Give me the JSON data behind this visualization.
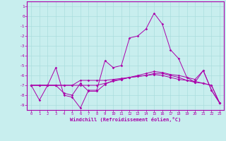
{
  "xlabel": "Windchill (Refroidissement éolien,°C)",
  "ylabel": "",
  "xlim": [
    -0.5,
    23.5
  ],
  "ylim": [
    -9.5,
    1.5
  ],
  "yticks": [
    1,
    0,
    -1,
    -2,
    -3,
    -4,
    -5,
    -6,
    -7,
    -8,
    -9
  ],
  "xticks": [
    0,
    1,
    2,
    3,
    4,
    5,
    6,
    7,
    8,
    9,
    10,
    11,
    12,
    13,
    14,
    15,
    16,
    17,
    18,
    19,
    20,
    21,
    22,
    23
  ],
  "bg_color": "#c8eeee",
  "grid_color": "#aadddd",
  "line_color": "#aa00aa",
  "series": [
    [
      -7.0,
      -8.5,
      -7.0,
      -5.2,
      -8.0,
      -8.2,
      -9.3,
      -7.5,
      -7.5,
      -4.5,
      -5.2,
      -5.0,
      -2.2,
      -2.0,
      -1.3,
      0.3,
      -0.8,
      -3.4,
      -4.3,
      -6.2,
      -6.7,
      -5.5,
      -7.5,
      -8.8
    ],
    [
      -7.0,
      -7.0,
      -7.0,
      -7.0,
      -7.0,
      -7.0,
      -7.0,
      -7.0,
      -7.0,
      -6.8,
      -6.6,
      -6.4,
      -6.2,
      -6.1,
      -6.0,
      -5.8,
      -5.8,
      -6.0,
      -6.2,
      -6.5,
      -6.7,
      -6.8,
      -7.0,
      -8.8
    ],
    [
      -7.0,
      -7.0,
      -7.0,
      -7.0,
      -7.0,
      -7.0,
      -6.5,
      -6.5,
      -6.5,
      -6.5,
      -6.4,
      -6.3,
      -6.2,
      -6.1,
      -6.0,
      -5.9,
      -6.0,
      -6.2,
      -6.4,
      -6.5,
      -6.6,
      -6.8,
      -7.0,
      -8.8
    ],
    [
      -7.0,
      -7.0,
      -7.0,
      -7.0,
      -7.8,
      -8.0,
      -6.8,
      -7.6,
      -7.6,
      -6.9,
      -6.5,
      -6.4,
      -6.2,
      -6.0,
      -5.8,
      -5.6,
      -5.7,
      -5.9,
      -6.0,
      -6.2,
      -6.4,
      -5.5,
      -7.5,
      -8.8
    ]
  ]
}
